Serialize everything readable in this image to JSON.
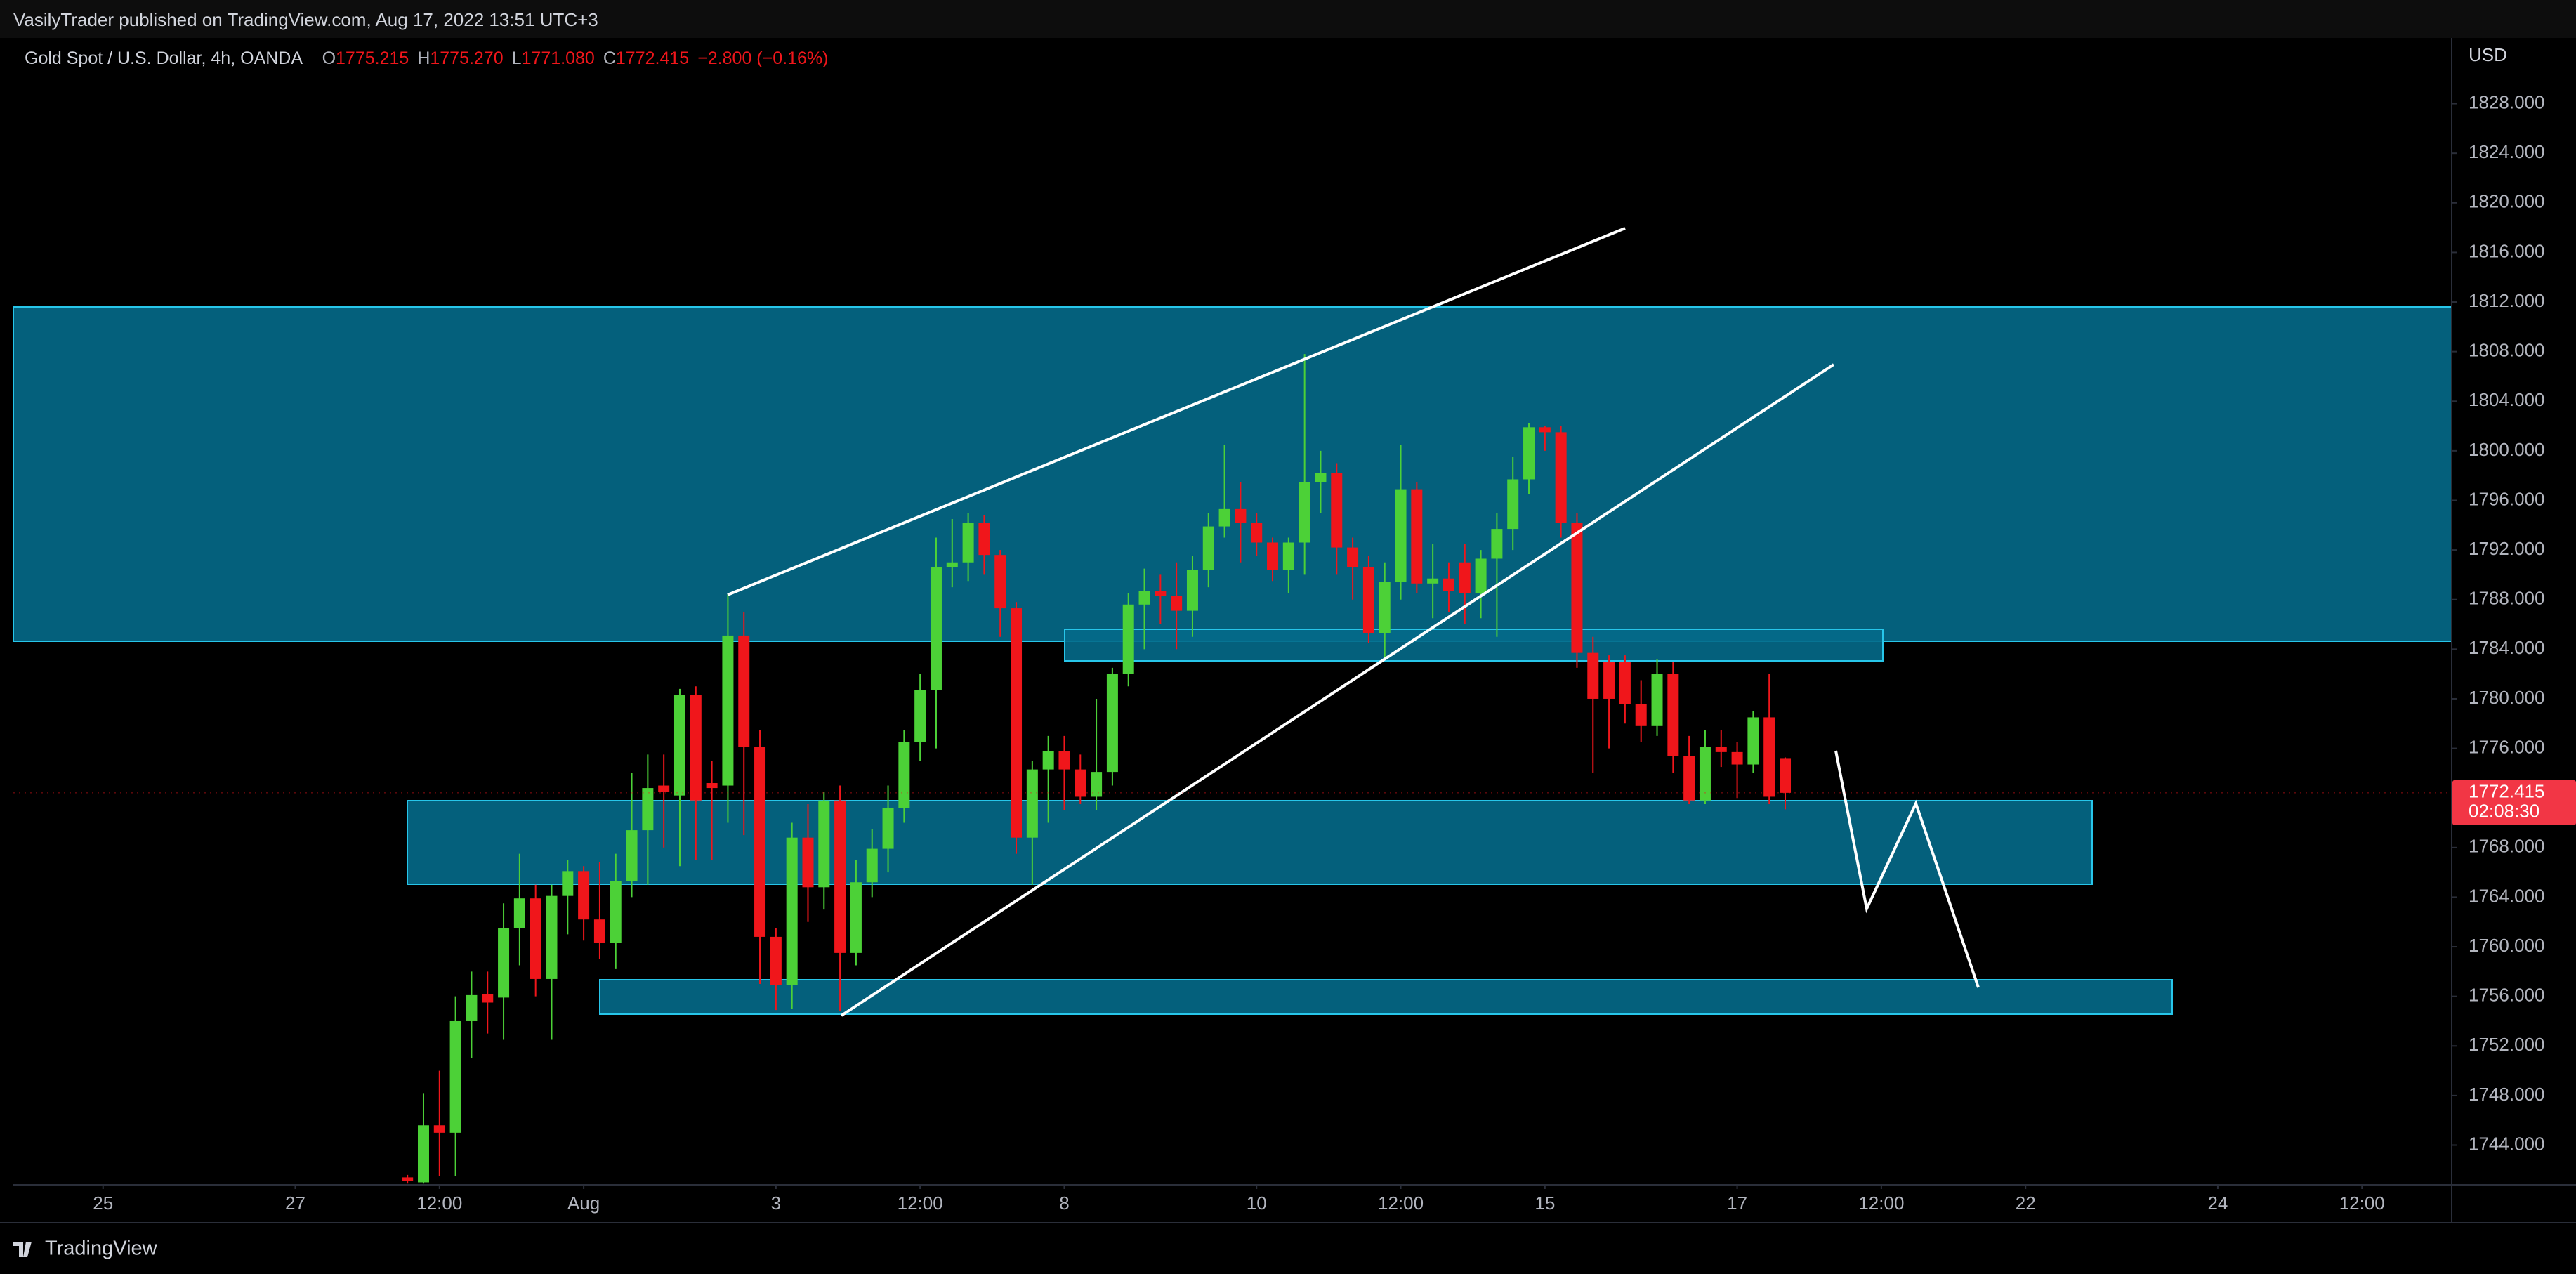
{
  "header": {
    "publisher": "VasilyTrader published on TradingView.com, Aug 17, 2022 13:51 UTC+3"
  },
  "footer": {
    "brand": "TradingView"
  },
  "chart_data": {
    "type": "candlestick",
    "title": "Gold Spot / U.S. Dollar, 4h, OANDA",
    "ohlc_legend": [
      {
        "key": "O",
        "value": "1775.215"
      },
      {
        "key": "H",
        "value": "1775.270"
      },
      {
        "key": "L",
        "value": "1771.080"
      },
      {
        "key": "C",
        "value": "1772.415"
      }
    ],
    "change": "−2.800 (−0.16%)",
    "currency": "USD",
    "last_price_label": "1772.415",
    "countdown": "02:08:30",
    "up_color": "#4cd137",
    "down_color": "#f0161b",
    "x": [
      19,
      20,
      21,
      22,
      23,
      24,
      25,
      26,
      27,
      28,
      29,
      30,
      31,
      32,
      33,
      34,
      35,
      36,
      37,
      38,
      39,
      40,
      41,
      42,
      43,
      44,
      45,
      46,
      47,
      48,
      49,
      50,
      51,
      52,
      53,
      54,
      55,
      56,
      57,
      58,
      59,
      60,
      61,
      62,
      63,
      64,
      65,
      66,
      67,
      68,
      69,
      70,
      71,
      72,
      73,
      74,
      75,
      76,
      77,
      78,
      79,
      80,
      81,
      82,
      83,
      84,
      85,
      86,
      87,
      88,
      89,
      90,
      91,
      92,
      93,
      94,
      95,
      96,
      97,
      98,
      99,
      100,
      101,
      102,
      103,
      104,
      105
    ],
    "open": [
      1741.4,
      1741.0,
      1745.6,
      1745.0,
      1754.0,
      1756.2,
      1755.9,
      1761.5,
      1763.9,
      1757.4,
      1764.1,
      1766.1,
      1762.2,
      1760.3,
      1765.3,
      1769.4,
      1773.0,
      1772.2,
      1780.3,
      1773.2,
      1773.0,
      1785.1,
      1776.1,
      1760.8,
      1756.9,
      1768.8,
      1764.8,
      1771.8,
      1759.5,
      1765.2,
      1767.9,
      1771.2,
      1776.5,
      1780.7,
      1790.6,
      1791.0,
      1794.2,
      1791.6,
      1787.3,
      1768.8,
      1774.3,
      1775.8,
      1774.3,
      1772.1,
      1774.1,
      1782.0,
      1787.6,
      1788.7,
      1788.3,
      1787.1,
      1790.4,
      1793.9,
      1795.3,
      1794.2,
      1792.6,
      1790.4,
      1792.6,
      1797.5,
      1798.2,
      1792.2,
      1790.6,
      1785.3,
      1789.4,
      1796.9,
      1789.3,
      1789.7,
      1791.0,
      1788.5,
      1791.3,
      1793.7,
      1797.7,
      1801.9,
      1801.5,
      1794.2,
      1783.7,
      1783.0,
      1783.0,
      1779.6,
      1777.8,
      1782.0,
      1775.4,
      1771.8,
      1776.1,
      1775.7,
      1774.7,
      1778.5,
      1775.215
    ],
    "high": [
      1741.6,
      1748.2,
      1750.0,
      1756.0,
      1758.0,
      1758.0,
      1763.5,
      1767.5,
      1765.0,
      1765.0,
      1767.0,
      1766.5,
      1766.8,
      1767.5,
      1774.0,
      1775.5,
      1775.5,
      1780.8,
      1781.0,
      1775.0,
      1788.4,
      1787.0,
      1777.5,
      1761.5,
      1770.0,
      1771.5,
      1772.5,
      1773.0,
      1767.0,
      1769.5,
      1773.0,
      1777.5,
      1782.0,
      1793.0,
      1794.5,
      1795.0,
      1794.8,
      1792.0,
      1787.8,
      1775.0,
      1777.0,
      1777.0,
      1775.5,
      1780.0,
      1782.5,
      1788.5,
      1790.5,
      1790.0,
      1791.0,
      1791.5,
      1795.0,
      1800.5,
      1797.5,
      1795.0,
      1793.0,
      1793.0,
      1807.8,
      1800.0,
      1799.0,
      1793.0,
      1791.5,
      1791.0,
      1800.5,
      1797.5,
      1792.5,
      1791.0,
      1792.5,
      1792.0,
      1795.0,
      1799.5,
      1802.2,
      1802.0,
      1802.0,
      1795.0,
      1785.0,
      1783.5,
      1783.5,
      1781.5,
      1783.2,
      1783.0,
      1777.0,
      1777.5,
      1777.5,
      1776.5,
      1779.0,
      1782.0,
      1775.27
    ],
    "low": [
      1740.9,
      1740.9,
      1741.5,
      1741.5,
      1751.0,
      1753.0,
      1752.5,
      1758.5,
      1756.0,
      1752.5,
      1761.0,
      1760.5,
      1759.0,
      1758.2,
      1764.0,
      1765.0,
      1768.0,
      1766.5,
      1767.0,
      1767.0,
      1770.0,
      1769.0,
      1757.0,
      1754.9,
      1755.0,
      1762.0,
      1763.0,
      1754.8,
      1758.5,
      1764.0,
      1766.0,
      1770.0,
      1775.0,
      1776.0,
      1789.0,
      1789.5,
      1790.0,
      1785.0,
      1767.5,
      1765.0,
      1770.0,
      1771.0,
      1771.5,
      1771.0,
      1773.0,
      1781.0,
      1784.0,
      1786.0,
      1784.0,
      1785.0,
      1789.0,
      1793.0,
      1791.0,
      1791.5,
      1789.5,
      1788.5,
      1790.0,
      1795.0,
      1790.0,
      1788.0,
      1784.5,
      1783.2,
      1788.0,
      1788.5,
      1786.5,
      1787.0,
      1786.0,
      1786.5,
      1785.0,
      1792.0,
      1796.5,
      1800.0,
      1793.0,
      1782.5,
      1774.0,
      1776.0,
      1778.0,
      1776.5,
      1777.0,
      1774.0,
      1771.5,
      1771.5,
      1774.5,
      1772.0,
      1774.0,
      1771.5,
      1771.08
    ],
    "close": [
      1741.1,
      1745.6,
      1745.0,
      1754.0,
      1756.1,
      1755.5,
      1761.5,
      1763.9,
      1757.4,
      1764.1,
      1766.1,
      1762.2,
      1760.3,
      1765.3,
      1769.4,
      1772.8,
      1772.5,
      1780.3,
      1771.8,
      1772.8,
      1785.1,
      1776.1,
      1760.8,
      1756.9,
      1768.8,
      1764.8,
      1771.8,
      1759.5,
      1765.2,
      1767.9,
      1771.2,
      1776.5,
      1780.7,
      1790.6,
      1791.0,
      1794.2,
      1791.6,
      1787.3,
      1768.8,
      1774.3,
      1775.8,
      1774.3,
      1772.1,
      1774.1,
      1782.0,
      1787.6,
      1788.7,
      1788.3,
      1787.1,
      1790.4,
      1793.9,
      1795.3,
      1794.2,
      1792.6,
      1790.4,
      1792.6,
      1797.5,
      1798.2,
      1792.2,
      1790.6,
      1785.3,
      1789.4,
      1796.9,
      1789.3,
      1789.7,
      1788.7,
      1788.5,
      1791.3,
      1793.7,
      1797.7,
      1801.9,
      1801.5,
      1794.2,
      1783.7,
      1780.0,
      1780.0,
      1779.6,
      1777.8,
      1782.0,
      1775.4,
      1771.8,
      1776.1,
      1775.7,
      1774.7,
      1778.5,
      1772.1,
      1772.415
    ],
    "xlim": [
      -5.6,
      146.6
    ],
    "ylim": [
      1740.8,
      1833.3
    ],
    "xticks": [
      {
        "value": 0,
        "label": "25"
      },
      {
        "value": 12,
        "label": "27"
      },
      {
        "value": 21,
        "label": "12:00"
      },
      {
        "value": 30,
        "label": "Aug"
      },
      {
        "value": 42,
        "label": "3"
      },
      {
        "value": 51,
        "label": "12:00"
      },
      {
        "value": 60,
        "label": "8"
      },
      {
        "value": 72,
        "label": "10"
      },
      {
        "value": 81,
        "label": "12:00"
      },
      {
        "value": 90,
        "label": "15"
      },
      {
        "value": 102,
        "label": "17"
      },
      {
        "value": 111,
        "label": "12:00"
      },
      {
        "value": 120,
        "label": "22"
      },
      {
        "value": 132,
        "label": "24"
      },
      {
        "value": 141,
        "label": "12:00"
      }
    ],
    "yticks": [
      {
        "value": 1744,
        "label": "1744.000"
      },
      {
        "value": 1748,
        "label": "1748.000"
      },
      {
        "value": 1752,
        "label": "1752.000"
      },
      {
        "value": 1756,
        "label": "1756.000"
      },
      {
        "value": 1760,
        "label": "1760.000"
      },
      {
        "value": 1764,
        "label": "1764.000"
      },
      {
        "value": 1768,
        "label": "1768.000"
      },
      {
        "value": 1772,
        "label": "1772.000"
      },
      {
        "value": 1776,
        "label": "1776.000"
      },
      {
        "value": 1780,
        "label": "1780.000"
      },
      {
        "value": 1784,
        "label": "1784.000"
      },
      {
        "value": 1788,
        "label": "1788.000"
      },
      {
        "value": 1792,
        "label": "1792.000"
      },
      {
        "value": 1796,
        "label": "1796.000"
      },
      {
        "value": 1800,
        "label": "1800.000"
      },
      {
        "value": 1804,
        "label": "1804.000"
      },
      {
        "value": 1808,
        "label": "1808.000"
      },
      {
        "value": 1812,
        "label": "1812.000"
      },
      {
        "value": 1816,
        "label": "1816.000"
      },
      {
        "value": 1820,
        "label": "1820.000"
      },
      {
        "value": 1824,
        "label": "1824.000"
      },
      {
        "value": 1828,
        "label": "1828.000"
      }
    ]
  }
}
